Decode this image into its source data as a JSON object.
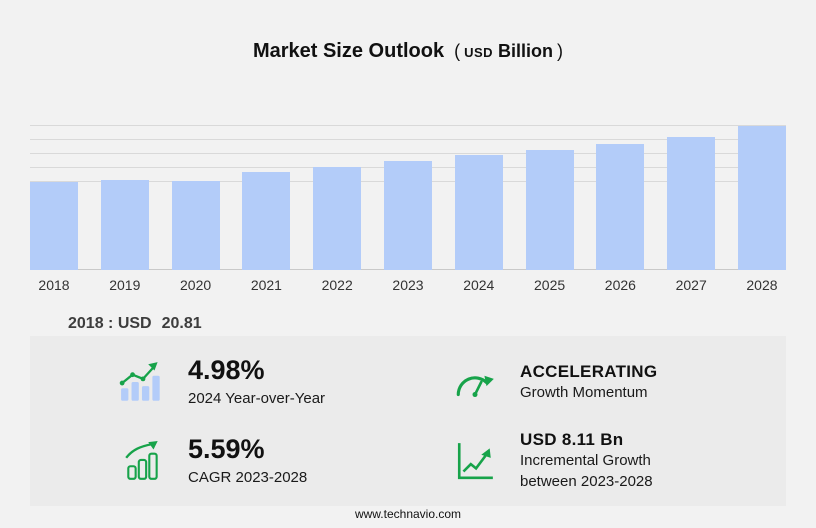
{
  "title": {
    "main": "Market Size Outlook",
    "open": "(",
    "currency": "USD",
    "unit": "Billion",
    "close": ")"
  },
  "chart_data": {
    "type": "bar",
    "title": "Market Size Outlook (USD Billion)",
    "categories": [
      "2018",
      "2019",
      "2020",
      "2021",
      "2022",
      "2023",
      "2024",
      "2025",
      "2026",
      "2027",
      "2028"
    ],
    "values": [
      20.81,
      21.3,
      21.1,
      23.2,
      24.4,
      25.9,
      27.2,
      28.4,
      29.9,
      31.5,
      34.0
    ],
    "xlabel": "",
    "ylabel": "",
    "ylim": [
      0,
      36
    ],
    "grid": true,
    "legend": false,
    "bar_color": "#b3ccf9",
    "labeled_values_note": "Only 2018 labeled on screen as USD 20.81; other bar values estimated from bar heights"
  },
  "annotation": {
    "label": "2018 : USD",
    "value": "20.81"
  },
  "stats": [
    {
      "icon": "bar-chart-trend-icon",
      "value": "4.98%",
      "desc1": "2024 Year-over-Year"
    },
    {
      "icon": "speedometer-icon",
      "value": "ACCELERATING",
      "desc1": "Growth Momentum"
    },
    {
      "icon": "growth-bars-icon",
      "value": "5.59%",
      "desc1": "CAGR 2023-2028"
    },
    {
      "icon": "line-chart-icon",
      "value": "USD 8.11 Bn",
      "desc1": "Incremental Growth",
      "desc2": "between 2023-2028"
    }
  ],
  "footer": {
    "url": "www.technavio.com"
  },
  "colors": {
    "accent_green": "#17a34a",
    "bar": "#b3ccf9",
    "background": "#f2f2f2",
    "panel": "#ebebeb"
  }
}
